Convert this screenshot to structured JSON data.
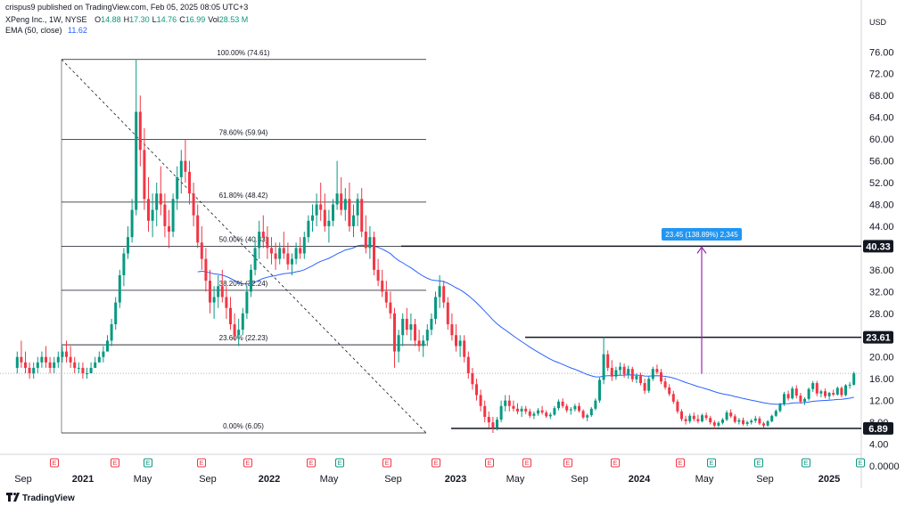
{
  "header": {
    "published_by": "crispus9 published on TradingView.com, Feb 05, 2025 08:05 UTC+3",
    "symbol": "XPeng Inc., 1W, NYSE",
    "ohlc": [
      {
        "label": "O",
        "value": "14.88"
      },
      {
        "label": "H",
        "value": "17.30"
      },
      {
        "label": "L",
        "value": "14.76"
      },
      {
        "label": "C",
        "value": "16.99"
      },
      {
        "label": "Vol",
        "value": "28.53 M"
      }
    ],
    "ema_label": "EMA (50, close)",
    "ema_value": "11.62",
    "currency": "USD"
  },
  "footer": {
    "brand": "TradingView"
  },
  "colors": {
    "up": "#089981",
    "down": "#f23645",
    "ema": "#2962ff",
    "measure": "#9c27b0",
    "measure_label": "#2196f3",
    "earnings": "#f23645",
    "dividend": "#089981",
    "split": "#e040fb"
  },
  "chart_data": {
    "type": "candlestick",
    "interval": "1W",
    "y_axis_ticks": [
      "76.00",
      "72.00",
      "68.00",
      "64.00",
      "60.00",
      "56.00",
      "52.00",
      "48.00",
      "44.00",
      "40.00",
      "36.00",
      "32.00",
      "28.00",
      "24.00",
      "20.00",
      "16.00",
      "12.00",
      "8.00",
      "4.00",
      "0.0000"
    ],
    "ylim": [
      0,
      80
    ],
    "x_axis_ticks": [
      {
        "label": "Sep",
        "year": false
      },
      {
        "label": "2021",
        "year": true
      },
      {
        "label": "May",
        "year": false
      },
      {
        "label": "Sep",
        "year": false
      },
      {
        "label": "2022",
        "year": true
      },
      {
        "label": "May",
        "year": false
      },
      {
        "label": "Sep",
        "year": false
      },
      {
        "label": "2023",
        "year": true
      },
      {
        "label": "May",
        "year": false
      },
      {
        "label": "Sep",
        "year": false
      },
      {
        "label": "2024",
        "year": true
      },
      {
        "label": "May",
        "year": false
      },
      {
        "label": "Sep",
        "year": false
      },
      {
        "label": "2025",
        "year": true
      }
    ],
    "price_labels": [
      {
        "text": "40.33",
        "value": 40.33
      },
      {
        "text": "23.61",
        "value": 23.61
      },
      {
        "text": "6.89",
        "value": 6.89
      }
    ],
    "fibonacci": [
      {
        "label": "100.00% (74.61)",
        "value": 74.61
      },
      {
        "label": "78.60% (59.94)",
        "value": 59.94
      },
      {
        "label": "61.80% (48.42)",
        "value": 48.42
      },
      {
        "label": "50.00% (40.33)",
        "value": 40.33
      },
      {
        "label": "38.20% (32.24)",
        "value": 32.24
      },
      {
        "label": "23.60% (22.23)",
        "value": 22.23
      },
      {
        "label": "0.00% (6.05)",
        "value": 6.05
      }
    ],
    "measure_label": "23.45 (138.89%) 2,345",
    "measure_from": 16.9,
    "measure_to": 40.33,
    "last_close": 16.99,
    "event_markers": [
      "E",
      "E",
      "D",
      "E",
      "E",
      "E",
      "D",
      "E",
      "E",
      "E",
      "E",
      "E",
      "E",
      "E",
      "D",
      "D",
      "D",
      "D",
      "S"
    ],
    "candles": [
      [
        18,
        21,
        17,
        20
      ],
      [
        20,
        23,
        18,
        19
      ],
      [
        19,
        21,
        17,
        18
      ],
      [
        18,
        19,
        16,
        17
      ],
      [
        17,
        19,
        16,
        18
      ],
      [
        18,
        20,
        17,
        19
      ],
      [
        19,
        21,
        18,
        20
      ],
      [
        20,
        22,
        18,
        19
      ],
      [
        19,
        20,
        17,
        18
      ],
      [
        18,
        20,
        17,
        19
      ],
      [
        19,
        21,
        18,
        20
      ],
      [
        20,
        22,
        19,
        21
      ],
      [
        21,
        23,
        19,
        20
      ],
      [
        20,
        22,
        18,
        19
      ],
      [
        19,
        20,
        17,
        18
      ],
      [
        18,
        19,
        17,
        18
      ],
      [
        18,
        19,
        16,
        17
      ],
      [
        17,
        18,
        16,
        17
      ],
      [
        17,
        19,
        17,
        18
      ],
      [
        18,
        20,
        18,
        19
      ],
      [
        19,
        21,
        19,
        20
      ],
      [
        20,
        22,
        19,
        21
      ],
      [
        21,
        24,
        21,
        23
      ],
      [
        23,
        27,
        22,
        26
      ],
      [
        26,
        31,
        25,
        30
      ],
      [
        30,
        36,
        29,
        35
      ],
      [
        35,
        40,
        33,
        39
      ],
      [
        39,
        44,
        38,
        42
      ],
      [
        42,
        49,
        41,
        47
      ],
      [
        47,
        74.61,
        46,
        65
      ],
      [
        65,
        68,
        55,
        58
      ],
      [
        58,
        62,
        47,
        49
      ],
      [
        49,
        53,
        43,
        45
      ],
      [
        45,
        50,
        42,
        47
      ],
      [
        47,
        52,
        44,
        50
      ],
      [
        50,
        55,
        46,
        48
      ],
      [
        48,
        50,
        42,
        44
      ],
      [
        44,
        47,
        40,
        43
      ],
      [
        43,
        50,
        42,
        49
      ],
      [
        49,
        55,
        47,
        53
      ],
      [
        53,
        58,
        50,
        56
      ],
      [
        56,
        59.94,
        52,
        54
      ],
      [
        54,
        56,
        48,
        50
      ],
      [
        50,
        52,
        44,
        46
      ],
      [
        46,
        48,
        40,
        41
      ],
      [
        41,
        44,
        36,
        38
      ],
      [
        38,
        40,
        32,
        34
      ],
      [
        34,
        36,
        28,
        30
      ],
      [
        30,
        33,
        27,
        31
      ],
      [
        31,
        35,
        29,
        33
      ],
      [
        33,
        36,
        30,
        31
      ],
      [
        31,
        33,
        27,
        29
      ],
      [
        29,
        31,
        25,
        26
      ],
      [
        26,
        28,
        23,
        24
      ],
      [
        24,
        27,
        22,
        25
      ],
      [
        25,
        29,
        24,
        28
      ],
      [
        28,
        33,
        27,
        32
      ],
      [
        32,
        37,
        31,
        36
      ],
      [
        36,
        42,
        35,
        40
      ],
      [
        40,
        45,
        38,
        43
      ],
      [
        43,
        46,
        40,
        42
      ],
      [
        42,
        44,
        38,
        40
      ],
      [
        40,
        42,
        37,
        39
      ],
      [
        39,
        41,
        36,
        38
      ],
      [
        38,
        41,
        37,
        40
      ],
      [
        40,
        43,
        38,
        39
      ],
      [
        39,
        41,
        36,
        37
      ],
      [
        37,
        39,
        35,
        38
      ],
      [
        38,
        41,
        37,
        40
      ],
      [
        40,
        42,
        38,
        39
      ],
      [
        39,
        43,
        38,
        42
      ],
      [
        42,
        46,
        41,
        45
      ],
      [
        45,
        48,
        43,
        46
      ],
      [
        46,
        50,
        44,
        48
      ],
      [
        48,
        52,
        45,
        47
      ],
      [
        47,
        50,
        43,
        44
      ],
      [
        44,
        47,
        41,
        45
      ],
      [
        45,
        49,
        44,
        48
      ],
      [
        48,
        56,
        47,
        50
      ],
      [
        50,
        53,
        46,
        47
      ],
      [
        47,
        51,
        45,
        49
      ],
      [
        49,
        52,
        43,
        44
      ],
      [
        44,
        48,
        42,
        46
      ],
      [
        46,
        50,
        44,
        49
      ],
      [
        49,
        51,
        42,
        43
      ],
      [
        43,
        46,
        39,
        40
      ],
      [
        40,
        44,
        38,
        42
      ],
      [
        42,
        43,
        35,
        36
      ],
      [
        36,
        38,
        33,
        34
      ],
      [
        34,
        36,
        31,
        32
      ],
      [
        32,
        34,
        29,
        30
      ],
      [
        30,
        32,
        27,
        28
      ],
      [
        28,
        29,
        18,
        21
      ],
      [
        21,
        25,
        19,
        24
      ],
      [
        24,
        28,
        22,
        27
      ],
      [
        27,
        29,
        24,
        25
      ],
      [
        25,
        28,
        23,
        26
      ],
      [
        26,
        27,
        22,
        23
      ],
      [
        23,
        25,
        21,
        22
      ],
      [
        22,
        24,
        20,
        23
      ],
      [
        23,
        26,
        22,
        25
      ],
      [
        25,
        28,
        24,
        27
      ],
      [
        27,
        32,
        26,
        31
      ],
      [
        31,
        35,
        29,
        33
      ],
      [
        33,
        34,
        29,
        30
      ],
      [
        30,
        31,
        25,
        26
      ],
      [
        26,
        28,
        23,
        24
      ],
      [
        24,
        26,
        21,
        22
      ],
      [
        22,
        24,
        20,
        23
      ],
      [
        23,
        24,
        19,
        20
      ],
      [
        20,
        21,
        16,
        17
      ],
      [
        17,
        18,
        14,
        15
      ],
      [
        15,
        16,
        12,
        13
      ],
      [
        13,
        14,
        10,
        11
      ],
      [
        11,
        12,
        8,
        9
      ],
      [
        9,
        10,
        7,
        8
      ],
      [
        8,
        9,
        6.05,
        7
      ],
      [
        7,
        9,
        6.5,
        8.5
      ],
      [
        8.5,
        12,
        8,
        11
      ],
      [
        11,
        13,
        10,
        12
      ],
      [
        12,
        13,
        10,
        11
      ],
      [
        11,
        12,
        10,
        10.5
      ],
      [
        10.5,
        11.5,
        9.5,
        10
      ],
      [
        10,
        11,
        9,
        10.5
      ],
      [
        10.5,
        11,
        9.5,
        10
      ],
      [
        10,
        10.5,
        8.8,
        9.2
      ],
      [
        9.2,
        10,
        8.6,
        9.6
      ],
      [
        9.6,
        10.6,
        9.2,
        10.2
      ],
      [
        10.2,
        11,
        9.4,
        9.8
      ],
      [
        9.8,
        10.2,
        8.8,
        9.1
      ],
      [
        9.1,
        9.8,
        8.6,
        9.4
      ],
      [
        9.4,
        11,
        9.2,
        10.6
      ],
      [
        10.6,
        12.2,
        10.2,
        11.8
      ],
      [
        11.8,
        12.4,
        10.6,
        11
      ],
      [
        11,
        11.4,
        9.8,
        10.2
      ],
      [
        10.2,
        10.8,
        9.4,
        10.4
      ],
      [
        10.4,
        11.4,
        10,
        11
      ],
      [
        11,
        11.6,
        9.8,
        10.1
      ],
      [
        10.1,
        10.4,
        8.6,
        8.9
      ],
      [
        8.9,
        9.6,
        8.2,
        9.3
      ],
      [
        9.3,
        10.8,
        9,
        10.5
      ],
      [
        10.5,
        12.4,
        10.2,
        12
      ],
      [
        12,
        16.2,
        11.6,
        15.8
      ],
      [
        15.8,
        23.61,
        15,
        20.5
      ],
      [
        20.5,
        21.2,
        17.4,
        18
      ],
      [
        18,
        19.4,
        15.6,
        16.4
      ],
      [
        16.4,
        18.2,
        15.8,
        17.6
      ],
      [
        17.6,
        19,
        16.6,
        18.2
      ],
      [
        18.2,
        18.8,
        16.2,
        16.8
      ],
      [
        16.8,
        18.4,
        16,
        17.8
      ],
      [
        17.8,
        18.2,
        15.4,
        15.9
      ],
      [
        15.9,
        17,
        15.2,
        16.5
      ],
      [
        16.5,
        17.1,
        14.8,
        15.2
      ],
      [
        15.2,
        16,
        13.2,
        13.8
      ],
      [
        13.8,
        16.4,
        13.4,
        16
      ],
      [
        16,
        18.2,
        15.6,
        17.8
      ],
      [
        17.8,
        18.6,
        16.8,
        17.2
      ],
      [
        17.2,
        17.8,
        15,
        15.5
      ],
      [
        15.5,
        16.2,
        14,
        14.4
      ],
      [
        14.4,
        15,
        12.8,
        13.2
      ],
      [
        13.2,
        13.8,
        11.4,
        11.8
      ],
      [
        11.8,
        12.2,
        9.6,
        10
      ],
      [
        10,
        10.4,
        8.2,
        8.6
      ],
      [
        8.6,
        9.2,
        7.6,
        8.2
      ],
      [
        8.2,
        9.6,
        7.8,
        9.2
      ],
      [
        9.2,
        9.8,
        8.2,
        8.6
      ],
      [
        8.6,
        9.4,
        7.8,
        8.2
      ],
      [
        8.2,
        9.6,
        8,
        9.3
      ],
      [
        9.3,
        9.8,
        8.4,
        8.8
      ],
      [
        8.8,
        9.2,
        7.6,
        8
      ],
      [
        8,
        8.4,
        6.89,
        7.4
      ],
      [
        7.4,
        8.2,
        7.1,
        7.9
      ],
      [
        7.9,
        8.8,
        7.6,
        8.5
      ],
      [
        8.5,
        10.2,
        8.2,
        9.8
      ],
      [
        9.8,
        10.4,
        8.8,
        9.1
      ],
      [
        9.1,
        9.5,
        7.8,
        8.1
      ],
      [
        8.1,
        8.8,
        7.6,
        8.4
      ],
      [
        8.4,
        8.9,
        7.4,
        7.7
      ],
      [
        7.7,
        8.3,
        7.3,
        8
      ],
      [
        8,
        8.6,
        7.6,
        8.3
      ],
      [
        8.3,
        9.2,
        7.9,
        8.7
      ],
      [
        8.7,
        9.1,
        7.5,
        7.8
      ],
      [
        7.8,
        8.1,
        7,
        7.4
      ],
      [
        7.4,
        8.4,
        7.2,
        8.2
      ],
      [
        8.2,
        9.4,
        8,
        9.2
      ],
      [
        9.2,
        10.4,
        9,
        10.1
      ],
      [
        10.1,
        11.6,
        9.8,
        11.3
      ],
      [
        11.3,
        13.6,
        11,
        13.2
      ],
      [
        13.2,
        13.8,
        12,
        12.4
      ],
      [
        12.4,
        14.6,
        12.2,
        14.2
      ],
      [
        14.2,
        14.8,
        12.4,
        12.9
      ],
      [
        12.9,
        13.4,
        11.4,
        11.8
      ],
      [
        11.8,
        12.6,
        11.2,
        12.3
      ],
      [
        12.3,
        14.4,
        12,
        14.1
      ],
      [
        14.1,
        15.6,
        13.6,
        15.2
      ],
      [
        15.2,
        15.6,
        12.8,
        13.3
      ],
      [
        13.3,
        14,
        12.6,
        13.7
      ],
      [
        13.7,
        14.2,
        12.4,
        12.8
      ],
      [
        12.8,
        13.6,
        12.2,
        13.4
      ],
      [
        13.4,
        14,
        12.8,
        13.1
      ],
      [
        13.1,
        14.6,
        12.9,
        14.3
      ],
      [
        14.3,
        14.6,
        12.6,
        13
      ],
      [
        13,
        15,
        12.8,
        14.8
      ],
      [
        14.8,
        15.4,
        14.2,
        14.9
      ],
      [
        14.9,
        17.3,
        14.76,
        16.99
      ]
    ]
  }
}
